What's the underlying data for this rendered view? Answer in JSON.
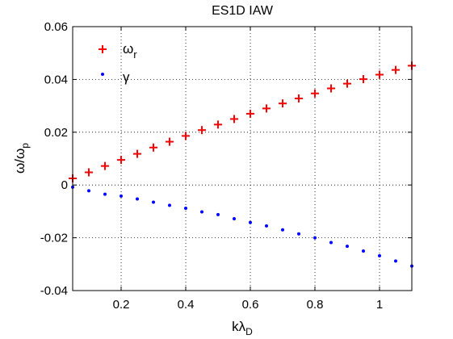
{
  "chart_data": {
    "type": "scatter",
    "title": "ES1D IAW",
    "xlabel": "kλ",
    "xlabel_sub": "D",
    "ylabel": "ω/ω",
    "ylabel_sub": "p",
    "xlim": [
      0.05,
      1.1
    ],
    "ylim": [
      -0.04,
      0.06
    ],
    "xticks": [
      0.2,
      0.4,
      0.6,
      0.8,
      1
    ],
    "xtick_labels": [
      "0.2",
      "0.4",
      "0.6",
      "0.8",
      "1"
    ],
    "yticks": [
      -0.04,
      -0.02,
      0,
      0.02,
      0.04,
      0.06
    ],
    "ytick_labels": [
      "-0.04",
      "-0.02",
      "0",
      "0.02",
      "0.04",
      "0.06"
    ],
    "grid": true,
    "legend_position": "top-left",
    "x": [
      0.05,
      0.1,
      0.15,
      0.2,
      0.25,
      0.3,
      0.35,
      0.4,
      0.45,
      0.5,
      0.55,
      0.6,
      0.65,
      0.7,
      0.75,
      0.8,
      0.85,
      0.9,
      0.95,
      1.0,
      1.05,
      1.1
    ],
    "series": [
      {
        "name": "ω",
        "name_sub": "r",
        "marker": "plus",
        "color": "#ff0000",
        "values": [
          0.0025,
          0.0048,
          0.0072,
          0.0095,
          0.0118,
          0.0142,
          0.0164,
          0.0186,
          0.0208,
          0.0229,
          0.025,
          0.027,
          0.029,
          0.0309,
          0.0328,
          0.0347,
          0.0366,
          0.0384,
          0.0401,
          0.0418,
          0.0436,
          0.0452
        ]
      },
      {
        "name": "γ",
        "name_sub": "",
        "marker": "dot",
        "color": "#0000ff",
        "values": [
          -0.0008,
          -0.0022,
          -0.0035,
          -0.0042,
          -0.0053,
          -0.0065,
          -0.0077,
          -0.0088,
          -0.0102,
          -0.0112,
          -0.0128,
          -0.0142,
          -0.0155,
          -0.017,
          -0.0185,
          -0.02,
          -0.0218,
          -0.0232,
          -0.025,
          -0.0268,
          -0.0288,
          -0.0307
        ]
      }
    ]
  }
}
